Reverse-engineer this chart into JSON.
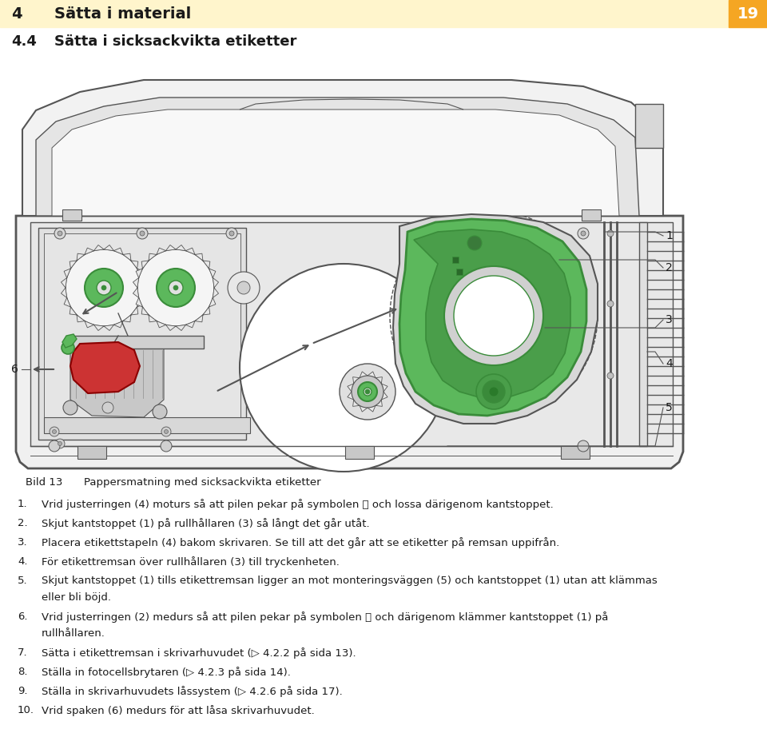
{
  "header_bg": "#FFF5CC",
  "header_number": "4",
  "header_title": "Sätta i material",
  "page_number": "19",
  "page_number_bg": "#F5A623",
  "section_number": "4.4",
  "section_title": "Sätta i sicksackvikta etiketter",
  "caption_label": "Bild 13",
  "caption_text": "Pappersmatning med sicksackvikta etiketter",
  "instructions": [
    {
      "num": "1.",
      "text": "Vrid justerringen (4) moturs så att pilen pekar på symbolen ⚿ och lossa därigenom kantstoppet."
    },
    {
      "num": "2.",
      "text": "Skjut kantstoppet (1) på rullhållaren (3) så långt det går utåt."
    },
    {
      "num": "3.",
      "text": "Placera etikettstapeln (4) bakom skrivaren. Se till att det går att se etiketter på remsan uppifrån."
    },
    {
      "num": "4.",
      "text": "För etikettremsan över rullhållaren (3) till tryckenheten."
    },
    {
      "num": "5.",
      "text": "Skjut kantstoppet (1) tills etikettremsan ligger an mot monteringsväggen (5) och kantstoppet (1) utan att klämmas\neller bli böjd."
    },
    {
      "num": "6.",
      "text": "Vrid justerringen (2) medurs så att pilen pekar på symbolen ⚿ och därigenom klämmer kantstoppet (1) på\nrullhållaren."
    },
    {
      "num": "7.",
      "text": "Sätta i etikettremsan i skrivarhuvudet (▷ 4.2.2 på sida 13)."
    },
    {
      "num": "8.",
      "text": "Ställa in fotocellsbrytaren (▷ 4.2.3 på sida 14)."
    },
    {
      "num": "9.",
      "text": "Ställa in skrivarhuvudets låssystem (▷ 4.2.6 på sida 17)."
    },
    {
      "num": "10.",
      "text": "Vrid spaken (6) medurs för att låsa skrivarhuvudet."
    }
  ],
  "bg_color": "#FFFFFF",
  "text_color": "#1a1a1a",
  "line_color": "#555555",
  "green_dark": "#3a8c3a",
  "green_mid": "#5cb85c",
  "green_light": "#8fcc8f",
  "green_pale": "#c5e8c5",
  "red_color": "#CC2222",
  "gray_body": "#e8e8e8",
  "gray_mid": "#cccccc",
  "gray_dark": "#aaaaaa",
  "diagram_line": "#555555"
}
